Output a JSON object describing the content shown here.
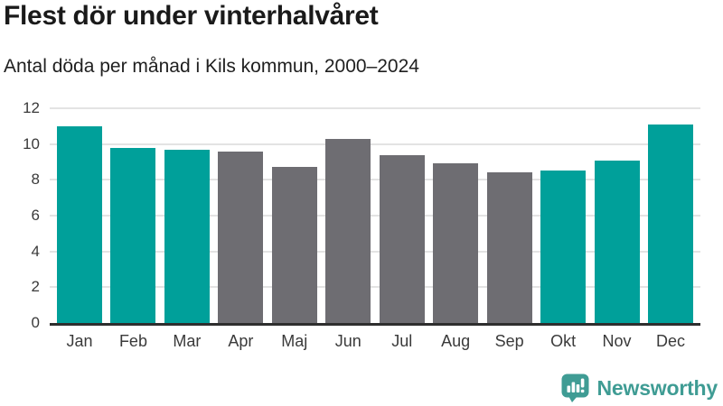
{
  "header": {
    "title": "Flest dör under vinterhalvåret",
    "subtitle": "Antal döda per månad i Kils kommun, 2000–2024"
  },
  "chart_data": {
    "type": "bar",
    "title": "Flest dör under vinterhalvåret",
    "subtitle": "Antal döda per månad i Kils kommun, 2000–2024",
    "categories": [
      "Jan",
      "Feb",
      "Mar",
      "Apr",
      "Maj",
      "Jun",
      "Jul",
      "Aug",
      "Sep",
      "Okt",
      "Nov",
      "Dec"
    ],
    "values": [
      11.0,
      9.8,
      9.7,
      9.6,
      8.7,
      10.3,
      9.4,
      8.9,
      8.4,
      8.5,
      9.1,
      11.1
    ],
    "bar_color_keys": [
      "teal",
      "teal",
      "teal",
      "gray",
      "gray",
      "gray",
      "gray",
      "gray",
      "gray",
      "teal",
      "teal",
      "teal"
    ],
    "colors": {
      "teal": "#00A09A",
      "gray": "#6E6D72"
    },
    "xlabel": "",
    "ylabel": "",
    "ylim": [
      0,
      12
    ],
    "yticks": [
      0,
      2,
      4,
      6,
      8,
      10,
      12
    ],
    "grid": true,
    "legend_position": "none"
  },
  "footer": {
    "brand": "Newsworthy",
    "brand_color": "#3f9c94",
    "logo_icon": "speech-bubble-bar-chart-exclamation"
  }
}
